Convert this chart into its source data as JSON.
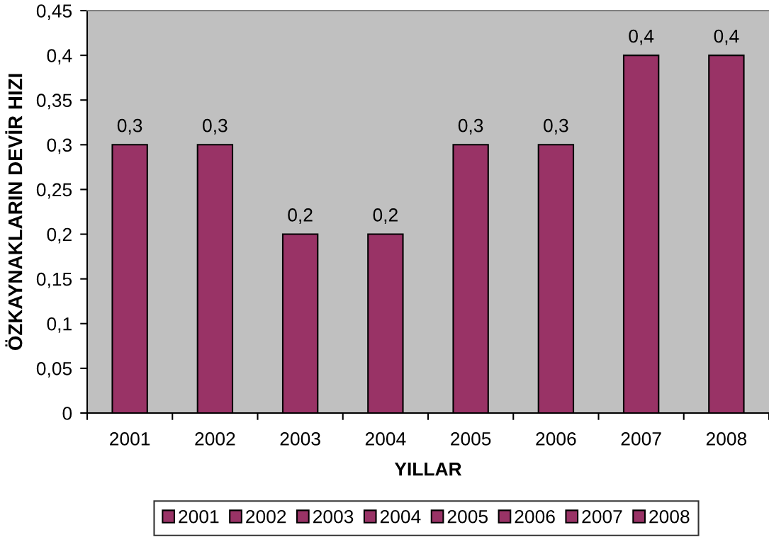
{
  "chart_data": {
    "type": "bar",
    "xlabel": "YILLAR",
    "ylabel": "ÖZKAYNAKLARIN DEVİR HIZI",
    "categories": [
      "2001",
      "2002",
      "2003",
      "2004",
      "2005",
      "2006",
      "2007",
      "2008"
    ],
    "stacked": true,
    "series": [
      {
        "name": "2001",
        "color": "#993366",
        "values": [
          0.3,
          null,
          null,
          null,
          null,
          null,
          null,
          null
        ],
        "value_labels": [
          "0,3",
          null,
          null,
          null,
          null,
          null,
          null,
          null
        ]
      },
      {
        "name": "2002",
        "color": "#993366",
        "values": [
          null,
          0.3,
          null,
          null,
          null,
          null,
          null,
          null
        ],
        "value_labels": [
          null,
          "0,3",
          null,
          null,
          null,
          null,
          null,
          null
        ]
      },
      {
        "name": "2003",
        "color": "#993366",
        "values": [
          null,
          null,
          0.2,
          null,
          null,
          null,
          null,
          null
        ],
        "value_labels": [
          null,
          null,
          "0,2",
          null,
          null,
          null,
          null,
          null
        ]
      },
      {
        "name": "2004",
        "color": "#993366",
        "values": [
          null,
          null,
          null,
          0.2,
          null,
          null,
          null,
          null
        ],
        "value_labels": [
          null,
          null,
          null,
          "0,2",
          null,
          null,
          null,
          null
        ]
      },
      {
        "name": "2005",
        "color": "#993366",
        "values": [
          null,
          null,
          null,
          null,
          0.3,
          null,
          null,
          null
        ],
        "value_labels": [
          null,
          null,
          null,
          null,
          "0,3",
          null,
          null,
          null
        ]
      },
      {
        "name": "2006",
        "color": "#993366",
        "values": [
          null,
          null,
          null,
          null,
          null,
          0.3,
          null,
          null
        ],
        "value_labels": [
          null,
          null,
          null,
          null,
          null,
          "0,3",
          null,
          null
        ]
      },
      {
        "name": "2007",
        "color": "#993366",
        "values": [
          null,
          null,
          null,
          null,
          null,
          null,
          0.4,
          null
        ],
        "value_labels": [
          null,
          null,
          null,
          null,
          null,
          null,
          "0,4",
          null
        ]
      },
      {
        "name": "2008",
        "color": "#993366",
        "values": [
          null,
          null,
          null,
          null,
          null,
          null,
          null,
          0.4
        ],
        "value_labels": [
          null,
          null,
          null,
          null,
          null,
          null,
          null,
          "0,4"
        ]
      }
    ],
    "ylim": [
      0,
      0.45
    ],
    "yticks": [
      0,
      {
        "value": 0.05,
        "label": "0,05"
      },
      {
        "value": 0.1,
        "label": "0,1"
      },
      {
        "value": 0.15,
        "label": "0,15"
      },
      {
        "value": 0.2,
        "label": "0,2"
      },
      {
        "value": 0.25,
        "label": "0,25"
      },
      {
        "value": 0.3,
        "label": "0,3"
      },
      {
        "value": 0.35,
        "label": "0,35"
      },
      {
        "value": 0.4,
        "label": "0,4"
      },
      {
        "value": 0.45,
        "label": "0,45"
      }
    ],
    "legend": "bottom",
    "grid": false
  }
}
